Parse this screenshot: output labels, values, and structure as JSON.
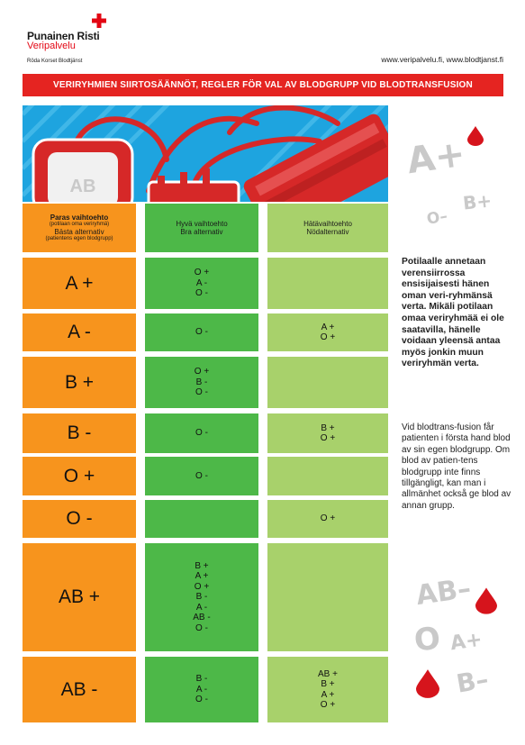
{
  "header": {
    "org_name": "Punainen Risti",
    "org_unit": "Veripalvelu",
    "org_swedish": "Röda Korset Blodtjänst",
    "websites": "www.veripalvelu.fi, www.blodtjanst.fi",
    "accent_color": "#e30613"
  },
  "title": "VERIRYHMIEN SIIRTOSÄÄNNÖT, REGLER FÖR VAL AV BLODGRUPP VID BLODTRANSFUSION",
  "banner": {
    "bag_label": "AB"
  },
  "table": {
    "headers": {
      "best": {
        "fi": "Paras vaihtoehto",
        "fi_note": "(potilaan oma veriryhmä)",
        "sv": "Bästa alternativ",
        "sv_note": "(patientens egen blodgrupp)"
      },
      "good": {
        "fi": "Hyvä vaihtoehto",
        "sv": "Bra alternativ"
      },
      "emergency": {
        "fi": "Hätävaihtoehto",
        "sv": "Nödalternativ"
      }
    },
    "rows": [
      {
        "group": "A +",
        "good": "O +\nA -\nO -",
        "emergency": ""
      },
      {
        "group": "A -",
        "good": "O -",
        "emergency": "A +\nO +"
      },
      {
        "group": "B +",
        "good": "O +\nB -\nO -",
        "emergency": ""
      },
      {
        "group": "B -",
        "good": "O -",
        "emergency": "B +\nO +"
      },
      {
        "group": "O +",
        "good": "O -",
        "emergency": ""
      },
      {
        "group": "O -",
        "good": "",
        "emergency": "O +"
      },
      {
        "group": "AB +",
        "good": "B +\nA +\nO +\nB -\nA -\nAB -\nO -",
        "emergency": ""
      },
      {
        "group": "AB -",
        "good": "B -\nA -\nO -",
        "emergency": "AB +\nB +\nA +\nO +"
      }
    ],
    "colors": {
      "best": "#f7941d",
      "good": "#4db848",
      "emergency": "#a8d16b"
    }
  },
  "side_text": {
    "fi": "Potilaalle annetaan verensiirrossa ensisijaisesti hänen oman veri-ryhmänsä verta. Mikäli potilaan omaa veriryhmää ei ole saatavilla, hänelle voidaan yleensä antaa myös jonkin muun veriryhmän verta.",
    "sv": "Vid blodtrans-fusion får patienten i första hand blod av sin egen blodgrupp. Om blod av patien-tens blodgrupp inte finns tillgängligt, kan man i allmänhet också ge blod av annan grupp."
  },
  "decorations": {
    "top": [
      "A+",
      "O–",
      "B+"
    ],
    "bottom": [
      "AB–",
      "O",
      "A+",
      "B–"
    ],
    "icons": [
      "blood-drop-icon"
    ]
  }
}
